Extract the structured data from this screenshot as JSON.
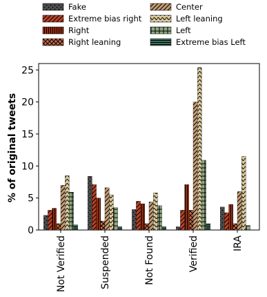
{
  "chart_data": {
    "type": "bar",
    "title": "",
    "xlabel": "",
    "ylabel": "% of original tweets",
    "ylim": [
      0,
      26
    ],
    "yticks": [
      0,
      5,
      10,
      15,
      20,
      25
    ],
    "categories": [
      "Not Verified",
      "Suspended",
      "Not Found",
      "Verified",
      "IRA"
    ],
    "legend_position": "top",
    "series": [
      {
        "name": "Fake",
        "color": "#4d4d4d",
        "pattern": "dots",
        "values": [
          2.3,
          8.4,
          3.2,
          0.5,
          3.6
        ]
      },
      {
        "name": "Extreme bias right",
        "color": "#b5432a",
        "pattern": "diagonal",
        "values": [
          3.1,
          7.1,
          4.5,
          3.1,
          2.7
        ]
      },
      {
        "name": "Right",
        "color": "#9c2f12",
        "pattern": "vertical",
        "values": [
          3.4,
          5.0,
          4.1,
          7.1,
          4.0
        ]
      },
      {
        "name": "Right leaning",
        "color": "#c96a45",
        "pattern": "cross",
        "values": [
          1.0,
          1.4,
          1.0,
          3.1,
          1.0
        ]
      },
      {
        "name": "Center",
        "color": "#c29a72",
        "pattern": "diagonal",
        "values": [
          7.0,
          6.6,
          4.4,
          20.0,
          6.0
        ]
      },
      {
        "name": "Left leaning",
        "color": "#d8c79b",
        "pattern": "waves",
        "values": [
          8.5,
          5.5,
          5.8,
          25.4,
          11.5
        ]
      },
      {
        "name": "Left",
        "color": "#8fa882",
        "pattern": "grid",
        "values": [
          5.9,
          3.5,
          3.8,
          10.9,
          0.7
        ]
      },
      {
        "name": "Extreme bias Left",
        "color": "#3d6e5a",
        "pattern": "horizontal",
        "values": [
          0.8,
          0.5,
          0.5,
          1.0,
          0.0
        ]
      }
    ]
  }
}
